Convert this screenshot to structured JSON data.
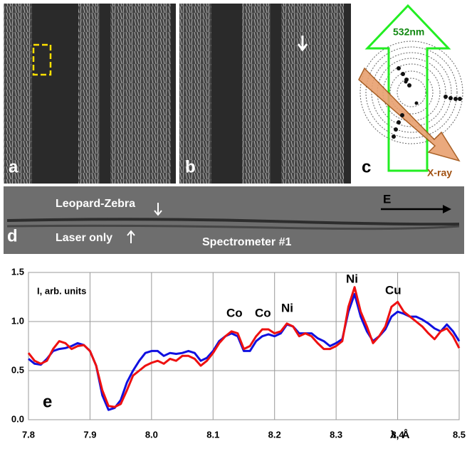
{
  "panel_labels": {
    "a": "a",
    "b": "b",
    "c": "c",
    "d": "d"
  },
  "panel_c": {
    "beam_label": "532nm",
    "xray_label": "X-ray"
  },
  "panel_d": {
    "upper_label": "Leopard-Zebra",
    "lower_label": "Laser only",
    "spectrometer": "Spectrometer #1",
    "direction": "E"
  },
  "chart_data": {
    "type": "line",
    "panel_label": "e",
    "xlabel": "λ, Å",
    "ylabel": "I, arb. units",
    "xlim": [
      7.8,
      8.5
    ],
    "ylim": [
      0,
      1.5
    ],
    "xticks": [
      7.8,
      7.9,
      {
        "value": 8,
        "label": "8.0"
      },
      8.1,
      8.2,
      8.3,
      8.4,
      8.5
    ],
    "yticks": [
      {
        "value": 0,
        "label": "0.0"
      },
      0.5,
      {
        "value": 1,
        "label": "1.0"
      },
      1.5
    ],
    "grid": true,
    "annotations": [
      "Co",
      "Co",
      "Ni",
      "Ni",
      "Cu"
    ],
    "x": [
      7.8,
      7.81,
      7.82,
      7.83,
      7.84,
      7.85,
      7.86,
      7.87,
      7.88,
      7.89,
      7.9,
      7.91,
      7.92,
      7.93,
      7.94,
      7.95,
      7.96,
      7.97,
      7.98,
      7.99,
      8.0,
      8.01,
      8.02,
      8.03,
      8.04,
      8.05,
      8.06,
      8.07,
      8.08,
      8.09,
      8.1,
      8.11,
      8.12,
      8.13,
      8.14,
      8.15,
      8.16,
      8.17,
      8.18,
      8.19,
      8.2,
      8.21,
      8.22,
      8.23,
      8.24,
      8.25,
      8.26,
      8.27,
      8.28,
      8.29,
      8.3,
      8.31,
      8.32,
      8.33,
      8.34,
      8.35,
      8.36,
      8.37,
      8.38,
      8.39,
      8.4,
      8.41,
      8.42,
      8.43,
      8.44,
      8.45,
      8.46,
      8.47,
      8.48,
      8.49,
      8.5
    ],
    "series": [
      {
        "color": "#1010e0",
        "values": [
          0.62,
          0.57,
          0.56,
          0.62,
          0.7,
          0.72,
          0.73,
          0.75,
          0.78,
          0.76,
          0.7,
          0.55,
          0.25,
          0.1,
          0.12,
          0.2,
          0.38,
          0.5,
          0.6,
          0.68,
          0.7,
          0.7,
          0.65,
          0.68,
          0.67,
          0.68,
          0.7,
          0.68,
          0.6,
          0.63,
          0.7,
          0.8,
          0.85,
          0.88,
          0.85,
          0.7,
          0.7,
          0.8,
          0.85,
          0.87,
          0.85,
          0.88,
          0.97,
          0.95,
          0.88,
          0.88,
          0.88,
          0.83,
          0.8,
          0.75,
          0.78,
          0.82,
          1.1,
          1.28,
          1.05,
          0.9,
          0.8,
          0.85,
          0.92,
          1.05,
          1.1,
          1.08,
          1.05,
          1.05,
          1.02,
          0.98,
          0.93,
          0.9,
          0.97,
          0.9,
          0.8
        ]
      },
      {
        "color": "#ee1010",
        "values": [
          0.68,
          0.6,
          0.57,
          0.6,
          0.72,
          0.8,
          0.78,
          0.72,
          0.75,
          0.76,
          0.7,
          0.55,
          0.3,
          0.14,
          0.13,
          0.16,
          0.3,
          0.45,
          0.5,
          0.55,
          0.58,
          0.6,
          0.57,
          0.62,
          0.6,
          0.65,
          0.65,
          0.62,
          0.55,
          0.6,
          0.68,
          0.78,
          0.85,
          0.9,
          0.88,
          0.72,
          0.75,
          0.85,
          0.92,
          0.92,
          0.88,
          0.9,
          0.98,
          0.95,
          0.85,
          0.88,
          0.85,
          0.78,
          0.72,
          0.72,
          0.75,
          0.8,
          1.15,
          1.35,
          1.1,
          0.95,
          0.78,
          0.85,
          0.95,
          1.15,
          1.2,
          1.1,
          1.05,
          1.0,
          0.95,
          0.88,
          0.82,
          0.9,
          0.93,
          0.85,
          0.73
        ]
      }
    ]
  }
}
